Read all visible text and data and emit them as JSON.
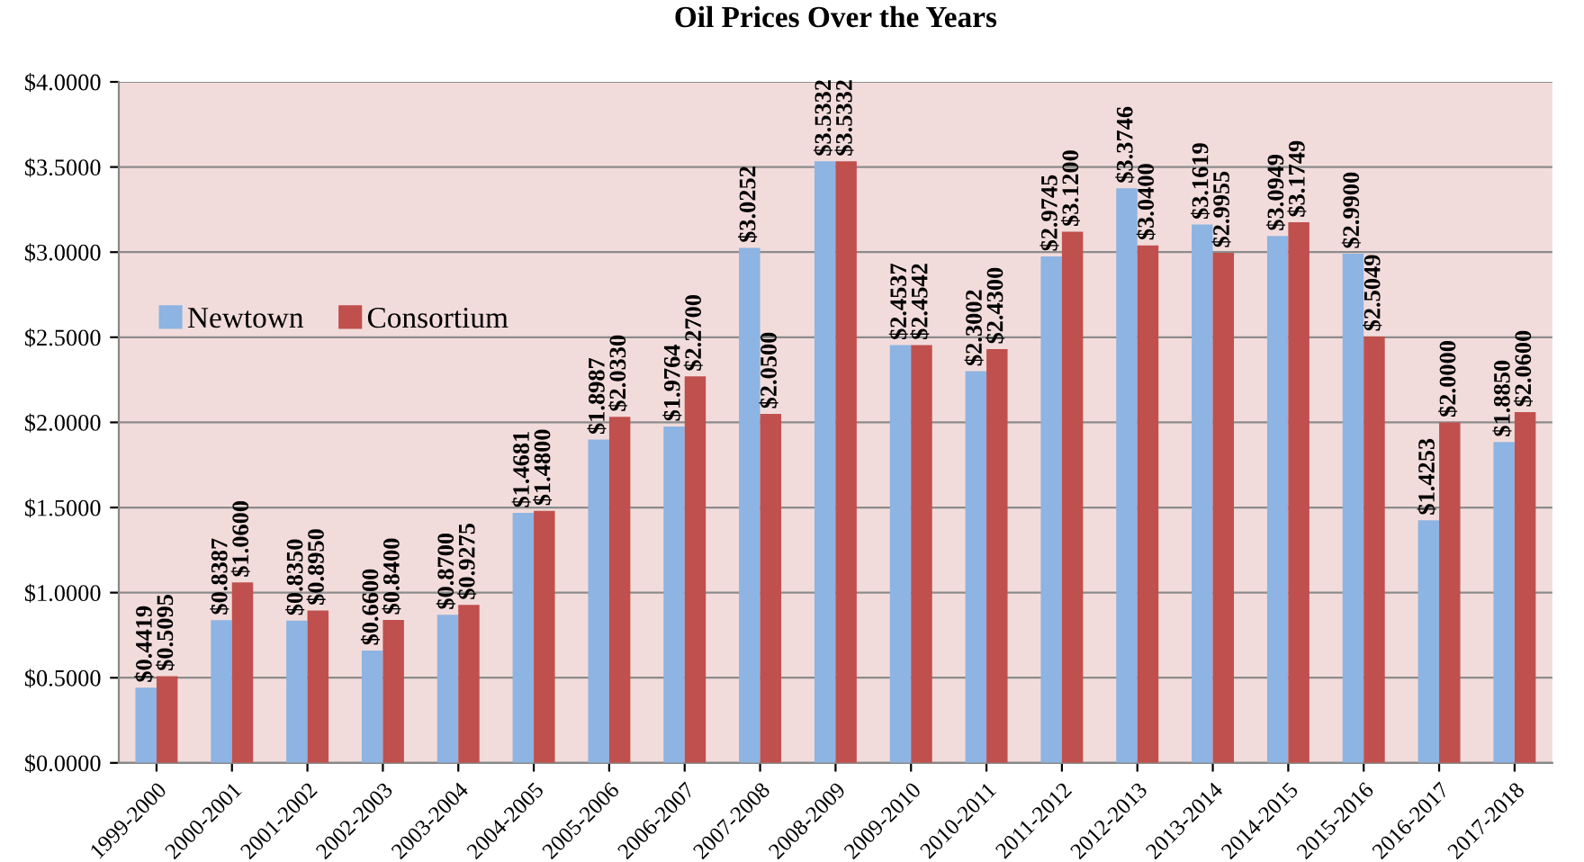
{
  "chart_data": {
    "type": "bar",
    "title": "Oil Prices Over the Years",
    "categories": [
      "1999-2000",
      "2000-2001",
      "2001-2002",
      "2002-2003",
      "2003-2004",
      "2004-2005",
      "2005-2006",
      "2006-2007",
      "2007-2008",
      "2008-2009",
      "2009-2010",
      "2010-2011",
      "2011-2012",
      "2012-2013",
      "2013-2014",
      "2014-2015",
      "2015-2016",
      "2016-2017",
      "2017-2018"
    ],
    "series": [
      {
        "name": "Newtown",
        "color": "#8db4e2",
        "values": [
          0.4419,
          0.8387,
          0.835,
          0.66,
          0.87,
          1.4681,
          1.8987,
          1.9764,
          3.0252,
          3.5332,
          2.4537,
          2.3002,
          2.9745,
          3.3746,
          3.1619,
          3.0949,
          2.99,
          1.4253,
          1.885
        ],
        "value_labels": [
          "$0.4419",
          "$0.8387",
          "$0.8350",
          "$0.6600",
          "$0.8700",
          "$1.4681",
          "$1.8987",
          "$1.9764",
          "$3.0252",
          "$3.5332",
          "$2.4537",
          "$2.3002",
          "$2.9745",
          "$3.3746",
          "$3.1619",
          "$3.0949",
          "$2.9900",
          "$1.4253",
          "$1.8850"
        ]
      },
      {
        "name": "Consortium",
        "color": "#c0504d",
        "values": [
          0.5095,
          1.06,
          0.895,
          0.84,
          0.9275,
          1.48,
          2.033,
          2.27,
          2.05,
          3.5332,
          2.4542,
          2.43,
          3.12,
          3.04,
          2.9955,
          3.1749,
          2.5049,
          2.0,
          2.06
        ],
        "value_labels": [
          "$0.5095",
          "$1.0600",
          "$0.8950",
          "$0.8400",
          "$0.9275",
          "$1.4800",
          "$2.0330",
          "$2.2700",
          "$2.0500",
          "$3.5332",
          "$2.4542",
          "$2.4300",
          "$3.1200",
          "$3.0400",
          "$2.9955",
          "$3.1749",
          "$2.5049",
          "$2.0000",
          "$2.0600"
        ]
      }
    ],
    "ylim": [
      0,
      4
    ],
    "yticks": [
      {
        "value": 0,
        "label": "$0.0000"
      },
      {
        "value": 0.5,
        "label": "$0.5000"
      },
      {
        "value": 1,
        "label": "$1.0000"
      },
      {
        "value": 1.5,
        "label": "$1.5000"
      },
      {
        "value": 2,
        "label": "$2.0000"
      },
      {
        "value": 2.5,
        "label": "$2.5000"
      },
      {
        "value": 3,
        "label": "$3.0000"
      },
      {
        "value": 3.5,
        "label": "$3.5000"
      },
      {
        "value": 4,
        "label": "$4.0000"
      }
    ],
    "grid": "y",
    "legend": "left"
  }
}
